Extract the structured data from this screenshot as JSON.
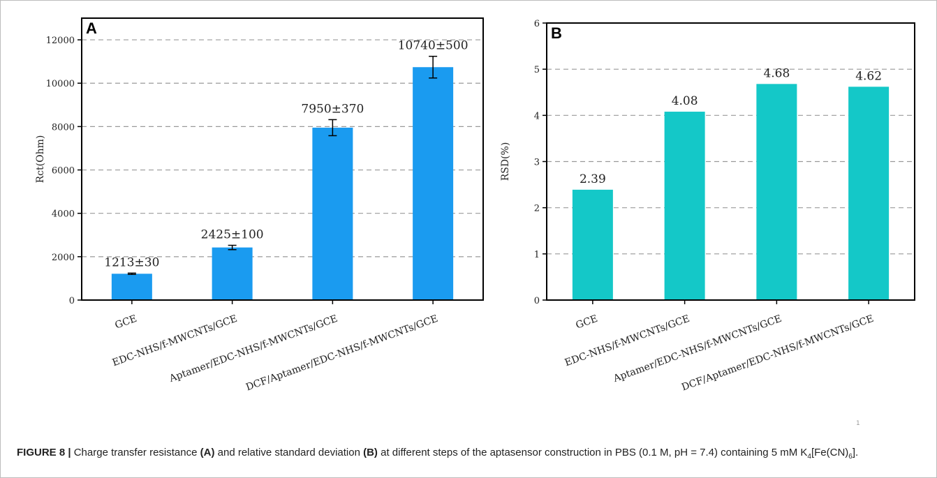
{
  "caption": {
    "label": "FIGURE 8 |",
    "t1": " Charge transfer resistance ",
    "ref_a": "(A)",
    "t2": " and relative standard deviation ",
    "ref_b": "(B)",
    "t3": " at different steps of the aptasensor construction in PBS (0.1 M, pH = 7.4) containing 5 mM K",
    "sub1": "4",
    "t4": "[Fe(CN)",
    "sub2": "6",
    "t5": "]."
  },
  "stray_mark": "1",
  "colors": {
    "panel_a_bar": "#1a9bf0",
    "panel_b_bar": "#14c8c8",
    "grid": "#999999"
  },
  "chart_data": [
    {
      "type": "bar",
      "panel_letter": "A",
      "ylabel": "Rct(Ohm)",
      "xlabel": "",
      "ylim": [
        0,
        13000
      ],
      "yticks": [
        0,
        2000,
        4000,
        6000,
        8000,
        10000,
        12000
      ],
      "grid": "horizontal dashed",
      "categories": [
        "GCE",
        "EDC-NHS/f-MWCNTs/GCE",
        "Aptamer/EDC-NHS/f-MWCNTs/GCE",
        "DCF/Aptamer/EDC-NHS/f-MWCNTs/GCE"
      ],
      "values": [
        1213,
        2425,
        7950,
        10740
      ],
      "errors": [
        30,
        100,
        370,
        500
      ],
      "data_labels": [
        "1213±30",
        "2425±100",
        "7950±370",
        "10740±500"
      ]
    },
    {
      "type": "bar",
      "panel_letter": "B",
      "ylabel": "RSD(%)",
      "xlabel": "",
      "ylim": [
        0,
        6
      ],
      "yticks": [
        0,
        1,
        2,
        3,
        4,
        5,
        6
      ],
      "grid": "horizontal dashed",
      "categories": [
        "GCE",
        "EDC-NHS/f-MWCNTs/GCE",
        "Aptamer/EDC-NHS/f-MWCNTs/GCE",
        "DCF/Aptamer/EDC-NHS/f-MWCNTs/GCE"
      ],
      "values": [
        2.39,
        4.08,
        4.68,
        4.62
      ],
      "data_labels": [
        "2.39",
        "4.08",
        "4.68",
        "4.62"
      ]
    }
  ]
}
